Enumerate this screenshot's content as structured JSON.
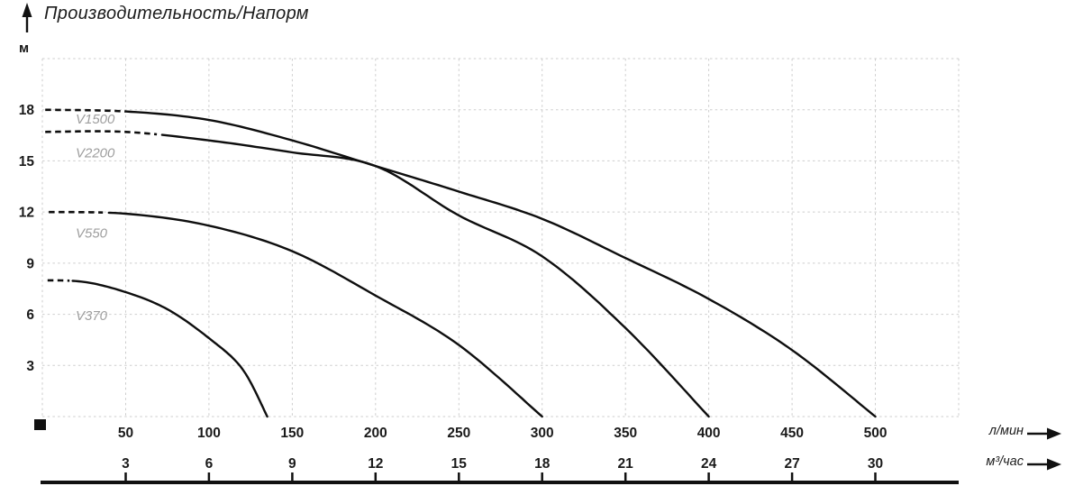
{
  "page": {
    "title_label": "Производительность/Напорм"
  },
  "axes_units": {
    "y": "м",
    "x_primary": "л/мин",
    "x_secondary": "м³/час"
  },
  "icons": {
    "up_arrow": "arrow-up-icon",
    "primary_axis_arrow": "arrow-right-icon",
    "secondary_axis_arrow": "arrow-right-icon"
  },
  "colors": {
    "curve": "#0e0e0e",
    "grid": "#cdcdcd",
    "series_label": "#9e9e9e",
    "text": "#1a1a1a",
    "axis": "#111111"
  },
  "chart_data": {
    "type": "line",
    "title": "Производительность/Напорм",
    "grid": true,
    "x_axis": {
      "primary_unit": "л/мин",
      "primary_ticks": [
        50,
        100,
        150,
        200,
        250,
        300,
        350,
        400,
        450,
        500
      ],
      "secondary_unit": "м³/час",
      "secondary_ticks": [
        3,
        6,
        9,
        12,
        15,
        18,
        21,
        24,
        27,
        30
      ],
      "range": [
        0,
        550
      ],
      "grid_step": 50
    },
    "y_axis": {
      "unit": "м",
      "ticks": [
        3,
        6,
        9,
        12,
        15,
        18
      ],
      "range": [
        0,
        21
      ],
      "grid_step": 3
    },
    "series": [
      {
        "name": "V1500",
        "points": [
          [
            0,
            18.0
          ],
          [
            50,
            17.9
          ],
          [
            100,
            17.4
          ],
          [
            150,
            16.2
          ],
          [
            200,
            14.7
          ],
          [
            250,
            13.2
          ],
          [
            300,
            11.6
          ],
          [
            350,
            9.3
          ],
          [
            400,
            6.9
          ],
          [
            450,
            3.9
          ],
          [
            500,
            0
          ]
        ],
        "dashed_range": [
          1.5,
          50
        ],
        "label_pos": [
          20,
          17.2
        ]
      },
      {
        "name": "V2200",
        "points": [
          [
            0,
            16.7
          ],
          [
            50,
            16.7
          ],
          [
            100,
            16.2
          ],
          [
            150,
            15.5
          ],
          [
            200,
            14.7
          ],
          [
            250,
            11.8
          ],
          [
            300,
            9.4
          ],
          [
            350,
            5.2
          ],
          [
            400,
            0
          ]
        ],
        "dashed_range": [
          1.5,
          70
        ],
        "label_pos": [
          20,
          15.2
        ]
      },
      {
        "name": "V550",
        "points": [
          [
            0,
            12.0
          ],
          [
            50,
            11.9
          ],
          [
            100,
            11.2
          ],
          [
            150,
            9.7
          ],
          [
            200,
            7.1
          ],
          [
            250,
            4.2
          ],
          [
            300,
            0
          ]
        ],
        "dashed_range": [
          3,
          38
        ],
        "label_pos": [
          20,
          10.5
        ]
      },
      {
        "name": "V370",
        "points": [
          [
            0,
            8.0
          ],
          [
            25,
            7.9
          ],
          [
            50,
            7.3
          ],
          [
            75,
            6.3
          ],
          [
            100,
            4.6
          ],
          [
            120,
            2.8
          ],
          [
            135,
            0
          ]
        ],
        "dashed_range": [
          3,
          18
        ],
        "label_pos": [
          20,
          5.65
        ]
      }
    ]
  }
}
